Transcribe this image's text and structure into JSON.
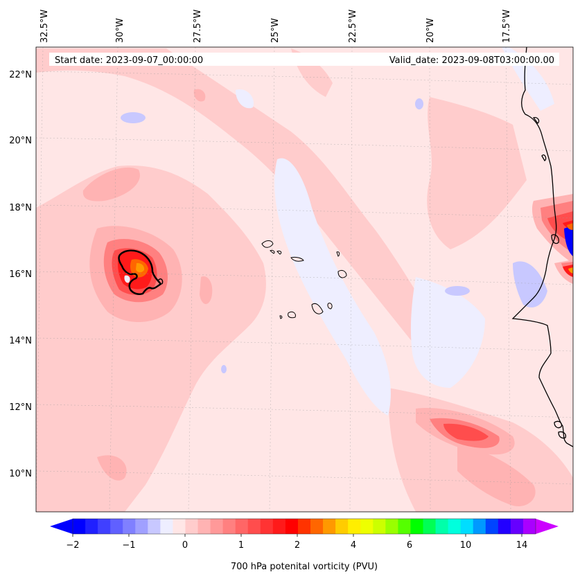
{
  "map": {
    "start_date": "Start date: 2023-09-07_00:00:00",
    "valid_date": "Valid_date: 2023-09-08T03:00:00.00",
    "lon_labels": [
      "32.5°W",
      "30°W",
      "27.5°W",
      "25°W",
      "22.5°W",
      "20°W",
      "17.5°W"
    ],
    "lat_labels": [
      "22°N",
      "20°N",
      "18°N",
      "16°N",
      "14°N",
      "12°N",
      "10°N"
    ],
    "features": {
      "storm": "vorticity-maximum-near-30W-16N",
      "islands": "cabo-verde-islands",
      "coast": "west-african-coastline"
    }
  },
  "colorbar": {
    "ticks": [
      "−2",
      "−1",
      "0",
      "1",
      "2",
      "4",
      "6",
      "10",
      "14"
    ],
    "label": "700 hPa potenital vorticity (PVU)",
    "colors": [
      "#0000ff",
      "#2020ff",
      "#4040ff",
      "#6060ff",
      "#8080ff",
      "#a0a0ff",
      "#c8c8ff",
      "#eeeeff",
      "#ffe6e6",
      "#ffcccc",
      "#ffb3b3",
      "#ff9999",
      "#ff8080",
      "#ff6666",
      "#ff4d4d",
      "#ff3333",
      "#ff1a1a",
      "#ff0000",
      "#ff3300",
      "#ff6600",
      "#ff9900",
      "#ffcc00",
      "#ffee00",
      "#eeff00",
      "#ccff00",
      "#99ff00",
      "#55ff00",
      "#00ff00",
      "#00ff55",
      "#00ffaa",
      "#00ffdd",
      "#00ddff",
      "#0099ff",
      "#0044ff",
      "#2200ff",
      "#6600ff",
      "#aa00ff"
    ],
    "extend_min_color": "#0000ff",
    "extend_max_color": "#cc00ff"
  }
}
